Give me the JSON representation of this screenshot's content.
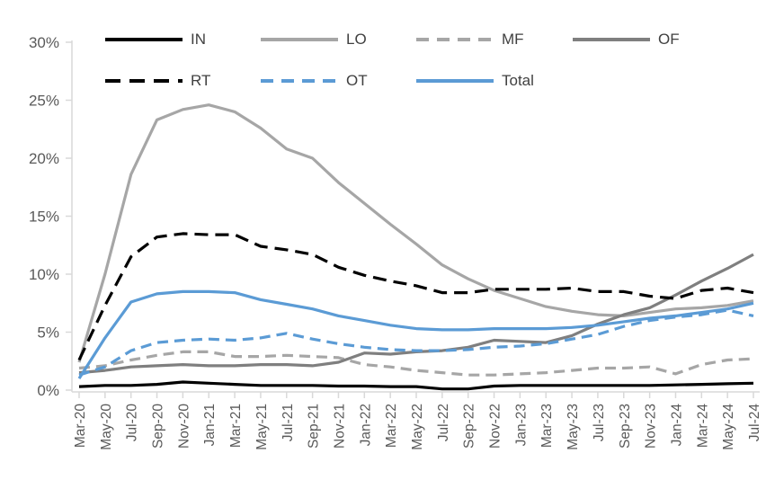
{
  "chart_data": {
    "type": "line",
    "title": "",
    "xlabel": "",
    "ylabel": "",
    "unit": "%",
    "ylim": [
      0,
      30
    ],
    "ytick_step": 5,
    "ytick_labels": [
      "0%",
      "5%",
      "10%",
      "15%",
      "20%",
      "25%",
      "30%"
    ],
    "grid": false,
    "legend_position": "top",
    "legend_rows": [
      [
        "IN",
        "LO",
        "MF",
        "OF"
      ],
      [
        "RT",
        "OT",
        "Total"
      ]
    ],
    "categories": [
      "Mar-20",
      "May-20",
      "Jul-20",
      "Sep-20",
      "Nov-20",
      "Jan-21",
      "Mar-21",
      "May-21",
      "Jul-21",
      "Sep-21",
      "Nov-21",
      "Jan-22",
      "Mar-22",
      "May-22",
      "Jul-22",
      "Sep-22",
      "Nov-22",
      "Jan-23",
      "Mar-23",
      "May-23",
      "Jul-23",
      "Sep-23",
      "Nov-23",
      "Jan-24",
      "Mar-24",
      "May-24",
      "Jul-24"
    ],
    "series": [
      {
        "name": "IN",
        "color": "#000000",
        "dashed": false,
        "values": [
          0.3,
          0.4,
          0.4,
          0.5,
          0.7,
          0.6,
          0.5,
          0.4,
          0.4,
          0.4,
          0.35,
          0.35,
          0.3,
          0.3,
          0.1,
          0.1,
          0.35,
          0.4,
          0.4,
          0.4,
          0.4,
          0.4,
          0.4,
          0.45,
          0.5,
          0.55,
          0.6
        ]
      },
      {
        "name": "LO",
        "color": "#A6A6A6",
        "dashed": false,
        "values": [
          2.4,
          10.0,
          18.6,
          23.3,
          24.2,
          24.6,
          24.0,
          22.6,
          20.8,
          20.0,
          17.9,
          16.1,
          14.3,
          12.6,
          10.8,
          9.6,
          8.6,
          7.9,
          7.2,
          6.8,
          6.5,
          6.4,
          6.7,
          7.0,
          7.1,
          7.3,
          7.7
        ]
      },
      {
        "name": "MF",
        "color": "#A6A6A6",
        "dashed": true,
        "values": [
          1.9,
          2.1,
          2.6,
          3.0,
          3.3,
          3.3,
          2.9,
          2.9,
          3.0,
          2.9,
          2.8,
          2.2,
          2.0,
          1.7,
          1.5,
          1.3,
          1.3,
          1.4,
          1.5,
          1.7,
          1.9,
          1.9,
          2.0,
          1.4,
          2.2,
          2.6,
          2.7
        ]
      },
      {
        "name": "OF",
        "color": "#7F7F7F",
        "dashed": false,
        "values": [
          1.5,
          1.7,
          2.0,
          2.1,
          2.2,
          2.1,
          2.1,
          2.2,
          2.2,
          2.1,
          2.4,
          3.2,
          3.1,
          3.3,
          3.4,
          3.7,
          4.3,
          4.2,
          4.1,
          4.7,
          5.7,
          6.5,
          7.1,
          8.2,
          9.4,
          10.5,
          11.7
        ]
      },
      {
        "name": "RT",
        "color": "#000000",
        "dashed": true,
        "values": [
          2.6,
          7.3,
          11.5,
          13.2,
          13.5,
          13.4,
          13.4,
          12.4,
          12.1,
          11.7,
          10.6,
          9.9,
          9.4,
          9.0,
          8.4,
          8.4,
          8.7,
          8.7,
          8.7,
          8.8,
          8.5,
          8.5,
          8.1,
          7.9,
          8.6,
          8.8,
          8.4
        ]
      },
      {
        "name": "OT",
        "color": "#5B9BD5",
        "dashed": true,
        "values": [
          1.3,
          2.0,
          3.4,
          4.1,
          4.3,
          4.4,
          4.3,
          4.5,
          4.9,
          4.4,
          4.0,
          3.7,
          3.5,
          3.4,
          3.4,
          3.5,
          3.7,
          3.8,
          4.0,
          4.4,
          4.8,
          5.5,
          6.0,
          6.3,
          6.5,
          6.9,
          6.4
        ]
      },
      {
        "name": "Total",
        "color": "#5B9BD5",
        "dashed": false,
        "values": [
          1.0,
          4.5,
          7.6,
          8.3,
          8.5,
          8.5,
          8.4,
          7.8,
          7.4,
          7.0,
          6.4,
          6.0,
          5.6,
          5.3,
          5.2,
          5.2,
          5.3,
          5.3,
          5.3,
          5.4,
          5.6,
          5.9,
          6.2,
          6.4,
          6.7,
          7.0,
          7.5
        ]
      }
    ],
    "colors": {
      "axis": "#D9D9D9",
      "tick_label": "#595959",
      "legend_text": "#404040",
      "blue": "#5B9BD5",
      "light_gray": "#A6A6A6",
      "dark_gray": "#7F7F7F",
      "black": "#000000"
    }
  }
}
